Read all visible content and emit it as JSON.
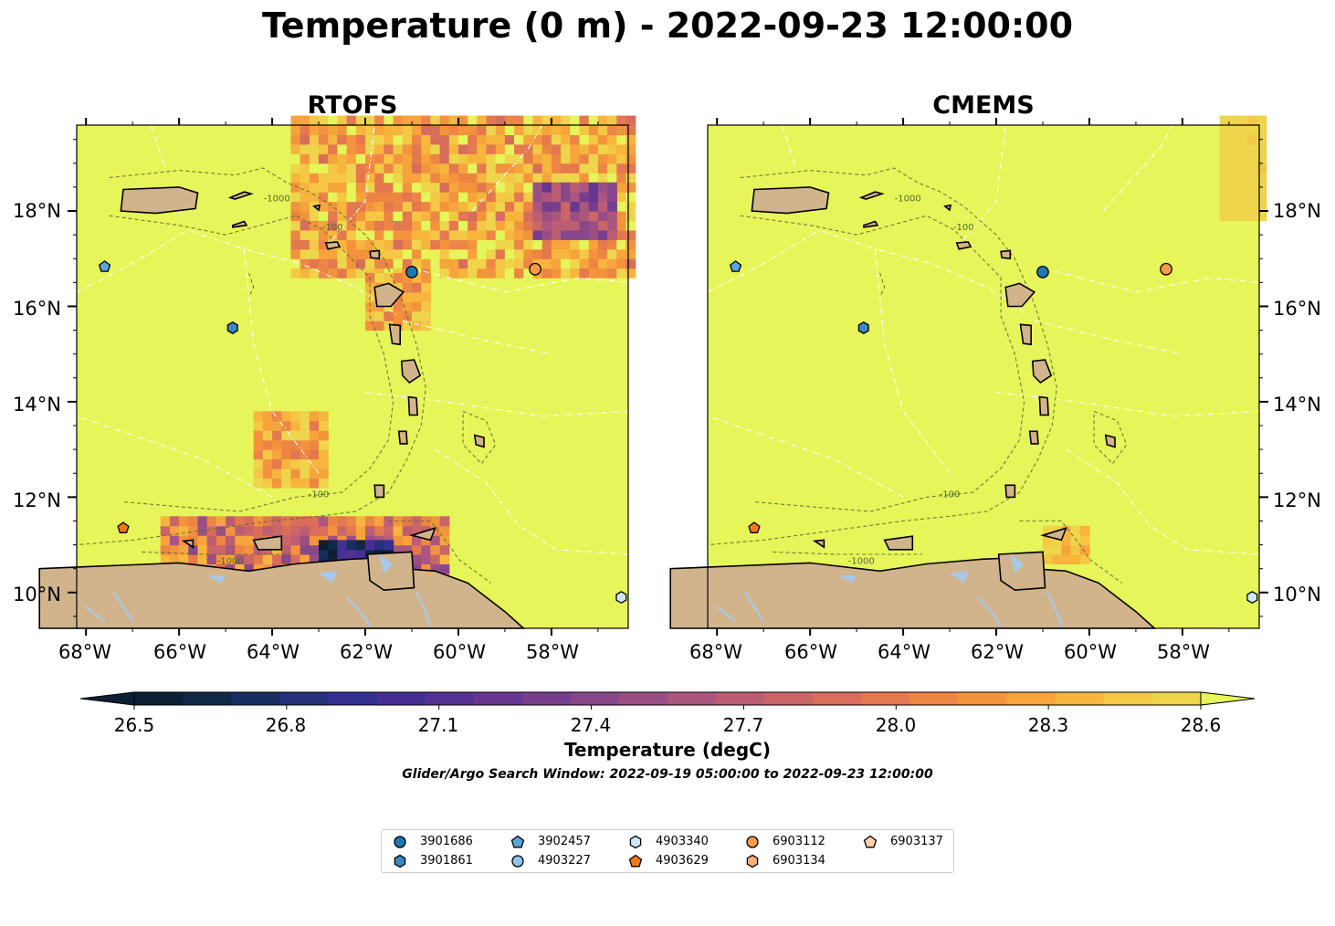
{
  "title": "Temperature (0 m) - 2022-09-23 12:00:00",
  "panels": [
    {
      "id": "left",
      "title": "RTOFS"
    },
    {
      "id": "right",
      "title": "CMEMS"
    }
  ],
  "map": {
    "lon_range": [
      -68.2,
      -56.35
    ],
    "lat_range": [
      9.25,
      19.8
    ],
    "lat_ticks": [
      "18°N",
      "16°N",
      "14°N",
      "12°N",
      "10°N"
    ],
    "lon_ticks": [
      "68°W",
      "66°W",
      "64°W",
      "62°W",
      "60°W",
      "58°W"
    ],
    "contour_labels": [
      "-1000",
      "-100"
    ],
    "colors": {
      "land": "#d2b48c",
      "ocean_warm": "#e6f55a",
      "lake": "#a8c8e8"
    }
  },
  "colorbar": {
    "min": 26.5,
    "max": 28.6,
    "ticks": [
      "26.5",
      "26.8",
      "27.1",
      "27.4",
      "27.7",
      "28.0",
      "28.3",
      "28.6"
    ],
    "label": "Temperature (degC)",
    "colors": [
      "#0c2034",
      "#102745",
      "#182e60",
      "#24307a",
      "#342f91",
      "#452f95",
      "#553093",
      "#663690",
      "#773e8e",
      "#884789",
      "#9a4f84",
      "#ab567c",
      "#bb5d73",
      "#ca6568",
      "#d86d5b",
      "#e4784e",
      "#ed8544",
      "#f3943d",
      "#f6a43b",
      "#f7b53e",
      "#f4c745",
      "#eed54c"
    ],
    "extend_max_color": "#e6f55a"
  },
  "search_window": "Glider/Argo Search Window: 2022-09-19 05:00:00 to 2022-09-23 12:00:00",
  "floats": [
    {
      "id": "3901686",
      "marker": "circle",
      "color": "#1f77b4",
      "lon": -61.0,
      "lat": 16.72
    },
    {
      "id": "3901861",
      "marker": "hexagon",
      "color": "#3d87c4",
      "lon": -64.85,
      "lat": 15.55
    },
    {
      "id": "3902457",
      "marker": "pentagon",
      "color": "#5aa6dc",
      "lon": -67.6,
      "lat": 16.83
    },
    {
      "id": "4903227",
      "marker": "circle",
      "color": "#8ec5ef",
      "lon": null,
      "lat": null
    },
    {
      "id": "4903340",
      "marker": "hexagon",
      "color": "#cce8f8",
      "lon": -56.5,
      "lat": 9.9
    },
    {
      "id": "4903629",
      "marker": "pentagon",
      "color": "#f07b16",
      "lon": -67.2,
      "lat": 11.35
    },
    {
      "id": "6903112",
      "marker": "circle",
      "color": "#f89a4a",
      "lon": -58.35,
      "lat": 16.78
    },
    {
      "id": "6903134",
      "marker": "hexagon",
      "color": "#f8b07c",
      "lon": null,
      "lat": null
    },
    {
      "id": "6903137",
      "marker": "pentagon",
      "color": "#fcd0a8",
      "lon": null,
      "lat": null
    }
  ]
}
